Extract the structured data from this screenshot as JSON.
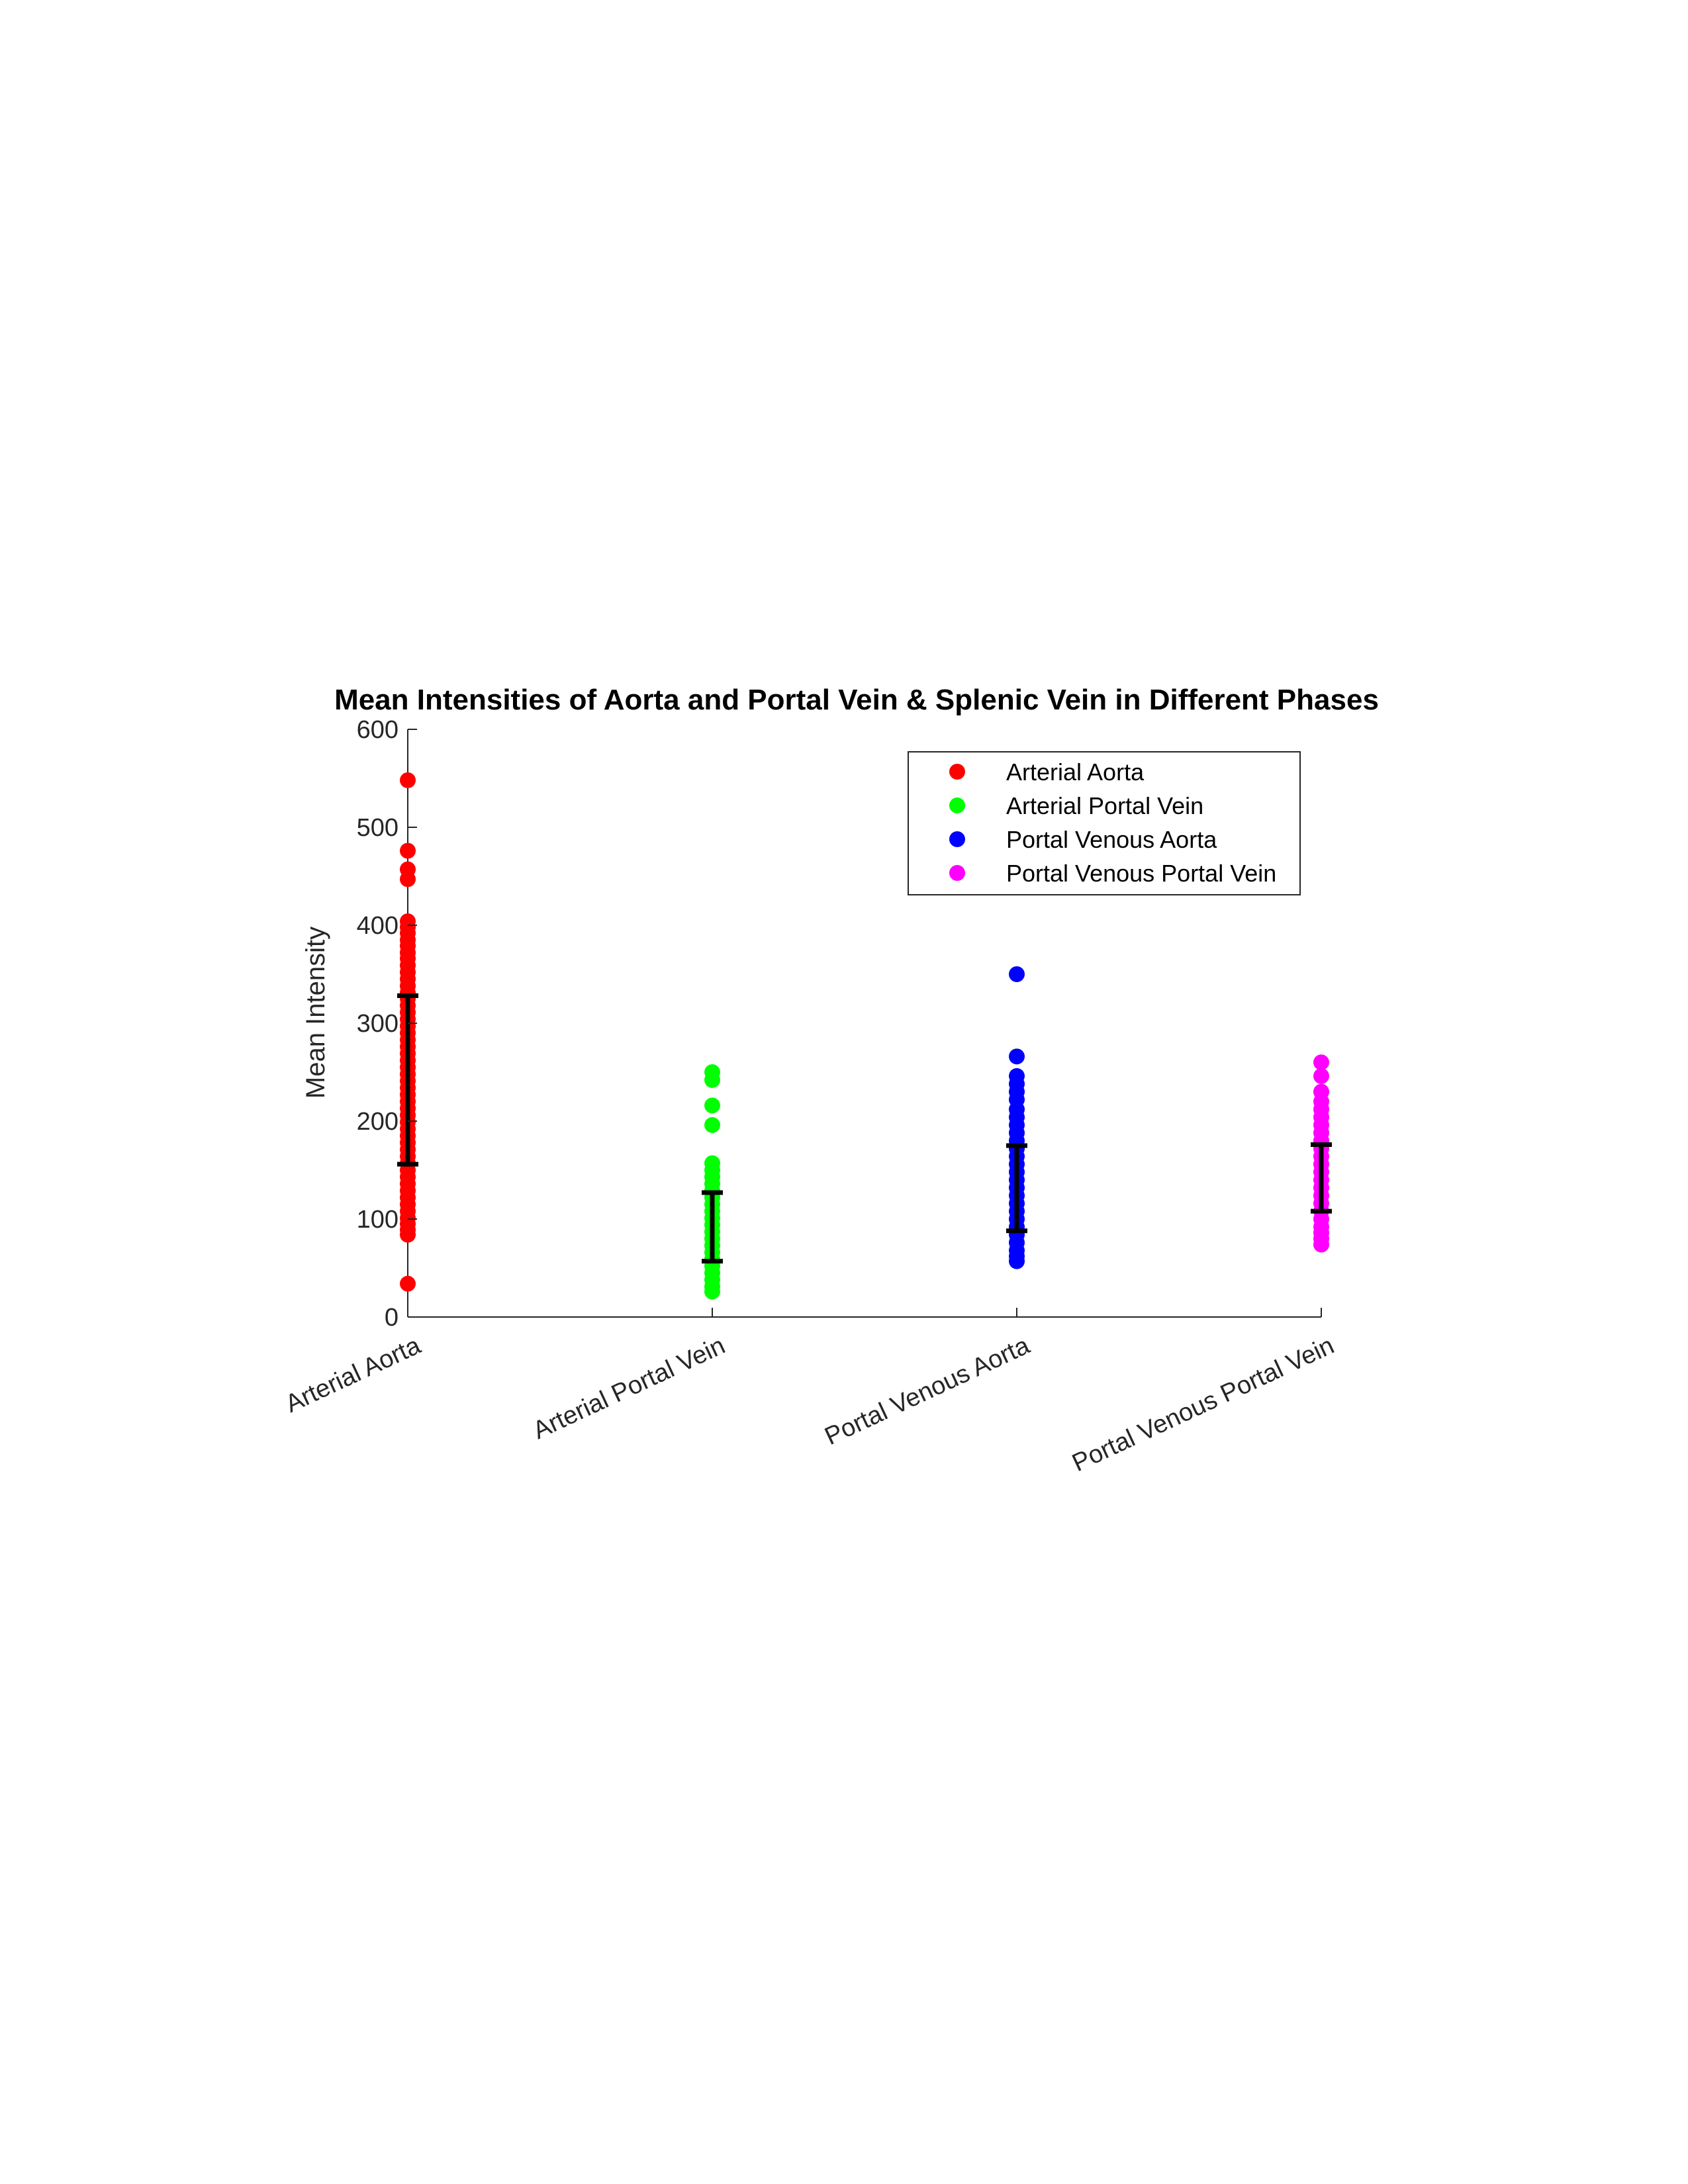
{
  "chart_data": {
    "type": "scatter",
    "title": "Mean Intensities of Aorta and Portal Vein & Splenic Vein in Different Phases",
    "xlabel": "",
    "ylabel": "Mean Intensity",
    "ylim": [
      0,
      600
    ],
    "yticks": [
      0,
      100,
      200,
      300,
      400,
      500,
      600
    ],
    "categories": [
      "Arterial Aorta",
      "Arterial Portal Vein",
      "Portal Venous Aorta",
      "Portal Venous Portal Vein"
    ],
    "legend_position": "top-right",
    "grid": false,
    "series": [
      {
        "name": "Arterial Aorta",
        "color": "#ff0000",
        "category_index": 0,
        "values": [
          548,
          476,
          457,
          447,
          404,
          398,
          392,
          385,
          379,
          372,
          366,
          359,
          352,
          345,
          338,
          331,
          325,
          318,
          311,
          304,
          297,
          290,
          283,
          276,
          269,
          262,
          255,
          248,
          241,
          234,
          227,
          220,
          213,
          206,
          199,
          192,
          185,
          178,
          171,
          164,
          157,
          150,
          143,
          136,
          129,
          122,
          115,
          108,
          101,
          95,
          89,
          84,
          34
        ],
        "error_bar": {
          "low": 156,
          "high": 328
        }
      },
      {
        "name": "Arterial Portal Vein",
        "color": "#00ff00",
        "category_index": 1,
        "values": [
          250,
          242,
          216,
          196,
          157,
          150,
          143,
          136,
          129,
          122,
          115,
          108,
          101,
          94,
          87,
          80,
          73,
          66,
          59,
          52,
          45,
          38,
          31,
          26
        ],
        "error_bar": {
          "low": 57,
          "high": 127
        }
      },
      {
        "name": "Portal Venous Aorta",
        "color": "#0000ff",
        "category_index": 2,
        "values": [
          350,
          266,
          246,
          238,
          230,
          222,
          212,
          204,
          196,
          188,
          180,
          172,
          164,
          156,
          148,
          140,
          132,
          124,
          116,
          108,
          100,
          92,
          84,
          76,
          68,
          62,
          57
        ],
        "error_bar": {
          "low": 88,
          "high": 175
        }
      },
      {
        "name": "Portal Venous Portal Vein",
        "color": "#ff00ff",
        "category_index": 3,
        "values": [
          260,
          246,
          230,
          220,
          212,
          204,
          196,
          188,
          180,
          172,
          164,
          156,
          148,
          140,
          132,
          124,
          116,
          108,
          100,
          92,
          86,
          80,
          74
        ],
        "error_bar": {
          "low": 108,
          "high": 176
        }
      }
    ]
  }
}
